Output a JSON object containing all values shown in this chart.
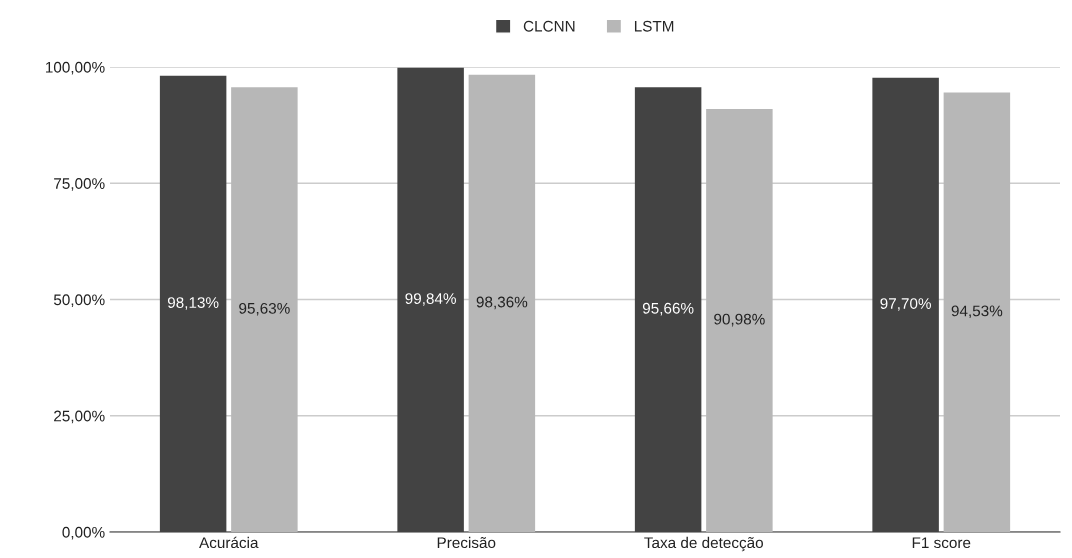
{
  "chart_data": {
    "type": "bar",
    "categories": [
      "Acurácia",
      "Precisão",
      "Taxa de detecção",
      "F1 score"
    ],
    "series": [
      {
        "name": "CLCNN",
        "color": "#434343",
        "values": [
          98.13,
          99.84,
          95.66,
          97.7
        ],
        "value_labels": [
          "98,13%",
          "99,84%",
          "95,66%",
          "97,70%"
        ]
      },
      {
        "name": "LSTM",
        "color": "#b7b7b7",
        "values": [
          95.63,
          98.36,
          90.98,
          94.53
        ],
        "value_labels": [
          "95,63%",
          "98,36%",
          "90,98%",
          "94,53%"
        ]
      }
    ],
    "ylim": [
      0,
      100
    ],
    "yticks": [
      {
        "value": 0,
        "label": "0,00%"
      },
      {
        "value": 25,
        "label": "25,00%"
      },
      {
        "value": 50,
        "label": "50,00%"
      },
      {
        "value": 75,
        "label": "75,00%"
      },
      {
        "value": 100,
        "label": "100,00%"
      }
    ],
    "grid": "y",
    "legend": "top"
  }
}
